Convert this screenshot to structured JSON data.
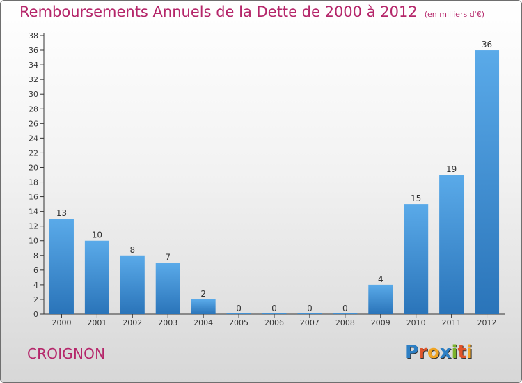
{
  "chart_data": {
    "type": "bar",
    "title": "Remboursements Annuels de la Dette de 2000 à 2012",
    "subtitle": "(en milliers d'€)",
    "categories": [
      "2000",
      "2001",
      "2002",
      "2003",
      "2004",
      "2005",
      "2006",
      "2007",
      "2008",
      "2009",
      "2010",
      "2011",
      "2012"
    ],
    "values": [
      13,
      10,
      8,
      7,
      2,
      0,
      0,
      0,
      0,
      4,
      15,
      19,
      36
    ],
    "xlabel": "",
    "ylabel": "",
    "ylim": [
      0,
      38
    ],
    "yticks": [
      0,
      2,
      4,
      6,
      8,
      10,
      12,
      14,
      16,
      18,
      20,
      22,
      24,
      26,
      28,
      30,
      32,
      34,
      36,
      38
    ],
    "grid": false,
    "bar_color": "#3d90d6",
    "title_color": "#b5266a"
  },
  "commune": "CROIGNON",
  "logo": {
    "text": "Proxiti",
    "letters": [
      {
        "ch": "P",
        "color": "#2d7fc4"
      },
      {
        "ch": "r",
        "color": "#e0542a"
      },
      {
        "ch": "o",
        "color": "#f0a423"
      },
      {
        "ch": "x",
        "color": "#2d7fc4"
      },
      {
        "ch": "i",
        "color": "#7bb22c"
      },
      {
        "ch": "t",
        "color": "#e0542a"
      },
      {
        "ch": "i",
        "color": "#f0a423"
      }
    ]
  }
}
